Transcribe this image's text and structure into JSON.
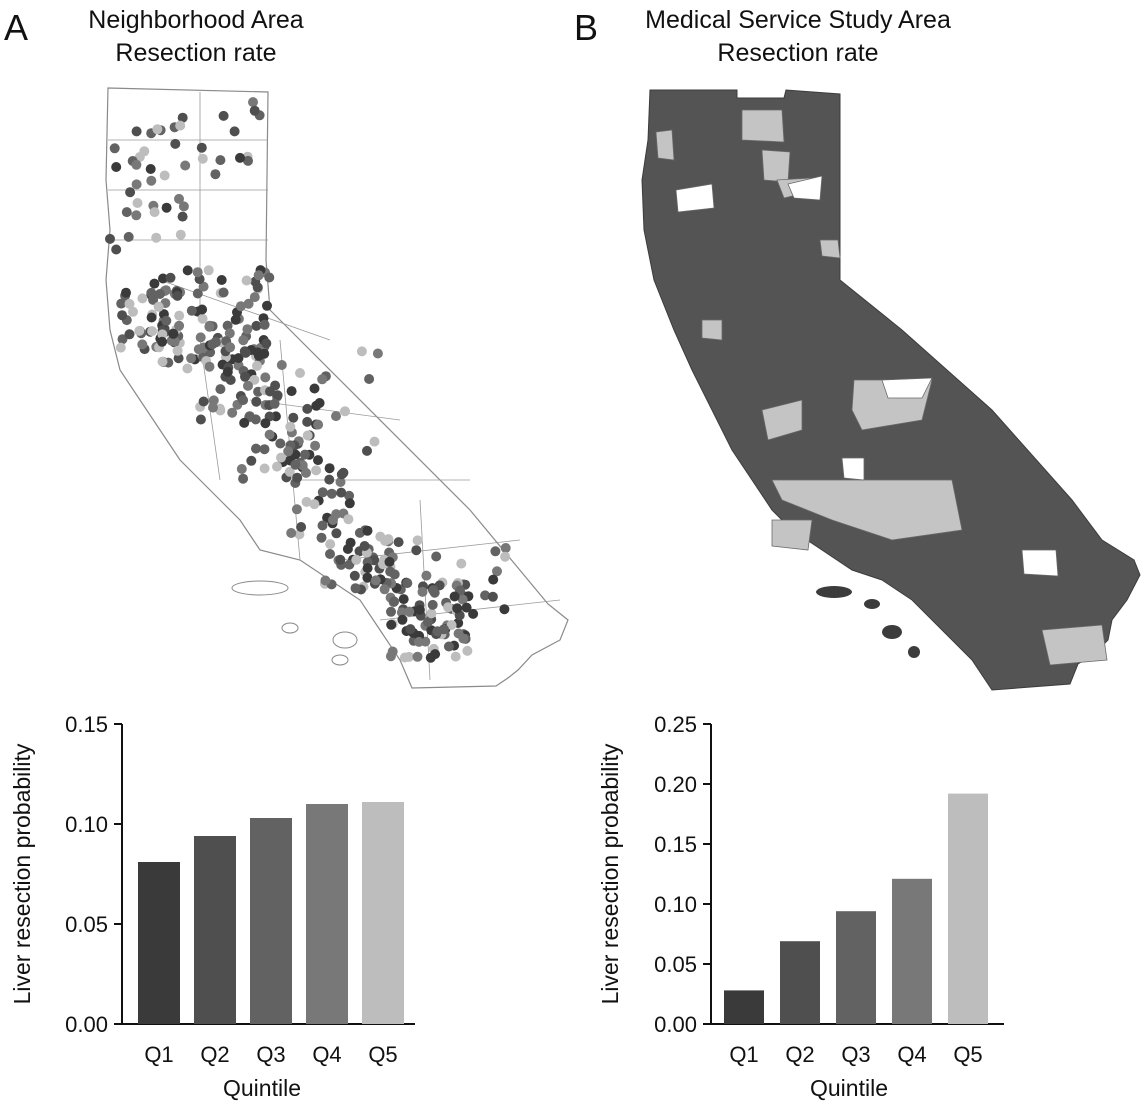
{
  "panels": [
    {
      "letter": "A",
      "title_line1": "Neighborhood Area",
      "title_line2": "Resection rate"
    },
    {
      "letter": "B",
      "title_line1": "Medical Service Study Area",
      "title_line2": "Resection rate"
    }
  ],
  "colors": {
    "Q1": "#3a3a3a",
    "Q2": "#4f4f4f",
    "Q3": "#626262",
    "Q4": "#787878",
    "Q5": "#bdbdbd",
    "map_fill_dark": "#545454",
    "map_fill_light": "#c4c4c4",
    "map_outline": "#8a8a8a"
  },
  "chart_data": [
    {
      "type": "bar",
      "categories": [
        "Q1",
        "Q2",
        "Q3",
        "Q4",
        "Q5"
      ],
      "values": [
        0.081,
        0.094,
        0.103,
        0.11,
        0.111
      ],
      "ylim": [
        0,
        0.15
      ],
      "yticks": [
        "0.00",
        "0.05",
        "0.10",
        "0.15"
      ],
      "xlabel": "Quintile",
      "ylabel": "Liver resection probability",
      "grid": false
    },
    {
      "type": "bar",
      "categories": [
        "Q1",
        "Q2",
        "Q3",
        "Q4",
        "Q5"
      ],
      "values": [
        0.028,
        0.069,
        0.094,
        0.121,
        0.192
      ],
      "ylim": [
        0,
        0.25
      ],
      "yticks": [
        "0.00",
        "0.05",
        "0.10",
        "0.15",
        "0.20",
        "0.25"
      ],
      "xlabel": "Quintile",
      "ylabel": "Liver resection probability",
      "grid": false
    }
  ]
}
